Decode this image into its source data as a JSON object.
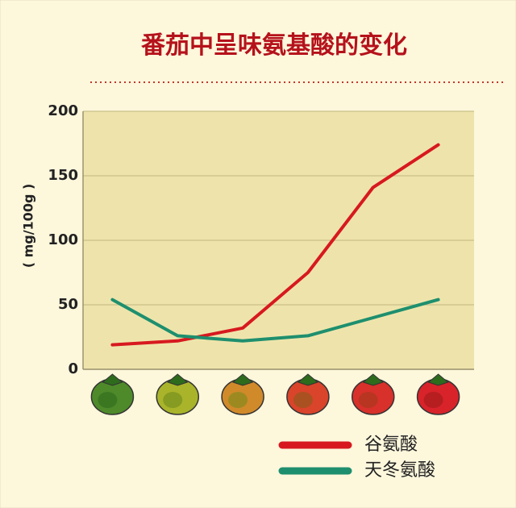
{
  "chart_data": {
    "type": "line",
    "title": "番茄中呈味氨基酸的变化",
    "y_label": "( mg/100g )",
    "categories": [
      null,
      null,
      null,
      null,
      null,
      null
    ],
    "series": [
      {
        "name": "谷氨酸",
        "color": "#d7191f",
        "values": [
          19,
          22,
          32,
          75,
          141,
          174
        ]
      },
      {
        "name": "天冬氨酸",
        "color": "#1e8f6e",
        "values": [
          54,
          26,
          22,
          26,
          40,
          54
        ]
      }
    ],
    "ylim": [
      0,
      200
    ],
    "yticks": [
      0,
      50,
      100,
      150,
      200
    ],
    "grid": true
  }
}
